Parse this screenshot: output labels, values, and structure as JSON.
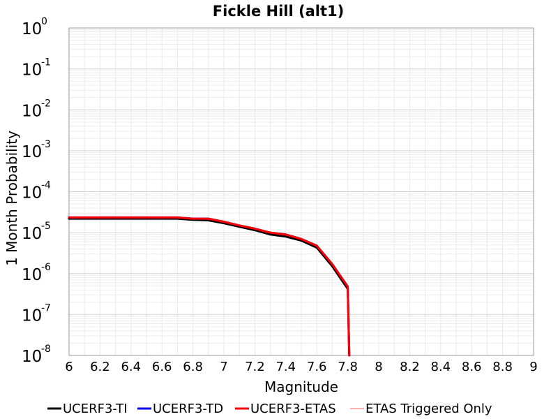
{
  "chart_data": {
    "type": "line",
    "title": "Fickle Hill (alt1)",
    "xlabel": "Magnitude",
    "ylabel": "1 Month Probability",
    "xlim": [
      6,
      9
    ],
    "ylim": [
      1e-08,
      1
    ],
    "yscale": "log",
    "grid": true,
    "legend_position": "bottom",
    "xticks": [
      "6",
      "6.2",
      "6.4",
      "6.6",
      "6.8",
      "7",
      "7.2",
      "7.4",
      "7.6",
      "7.8",
      "8",
      "8.2",
      "8.4",
      "8.6",
      "8.8",
      "9"
    ],
    "yticks": [
      {
        "base": "10",
        "exp": "0",
        "value": 1
      },
      {
        "base": "10",
        "exp": "-1",
        "value": 0.1
      },
      {
        "base": "10",
        "exp": "-2",
        "value": 0.01
      },
      {
        "base": "10",
        "exp": "-3",
        "value": 0.001
      },
      {
        "base": "10",
        "exp": "-4",
        "value": 0.0001
      },
      {
        "base": "10",
        "exp": "-5",
        "value": 1e-05
      },
      {
        "base": "10",
        "exp": "-6",
        "value": 1e-06
      },
      {
        "base": "10",
        "exp": "-7",
        "value": 1e-07
      },
      {
        "base": "10",
        "exp": "-8",
        "value": 1e-08
      }
    ],
    "series": [
      {
        "name": "UCERF3-TI",
        "color": "#000000",
        "width": 3,
        "x": [
          6.0,
          6.1,
          6.2,
          6.3,
          6.4,
          6.5,
          6.6,
          6.7,
          6.8,
          6.9,
          7.0,
          7.1,
          7.2,
          7.3,
          7.4,
          7.5,
          7.6,
          7.7,
          7.8,
          7.81
        ],
        "y": [
          2.2e-05,
          2.2e-05,
          2.2e-05,
          2.2e-05,
          2.2e-05,
          2.2e-05,
          2.2e-05,
          2.2e-05,
          2.05e-05,
          2e-05,
          1.7e-05,
          1.4e-05,
          1.15e-05,
          9e-06,
          8e-06,
          6.4e-06,
          4.3e-06,
          1.5e-06,
          4.2e-07,
          1e-08
        ]
      },
      {
        "name": "UCERF3-TD",
        "color": "#0000ff",
        "width": 3,
        "x": [
          6.0,
          6.1,
          6.2,
          6.3,
          6.4,
          6.5,
          6.6,
          6.7,
          6.8,
          6.9,
          7.0,
          7.1,
          7.2,
          7.3,
          7.4,
          7.5,
          7.6,
          7.7,
          7.8,
          7.81
        ],
        "y": [
          2.35e-05,
          2.35e-05,
          2.35e-05,
          2.35e-05,
          2.35e-05,
          2.35e-05,
          2.35e-05,
          2.35e-05,
          2.2e-05,
          2.2e-05,
          1.85e-05,
          1.5e-05,
          1.25e-05,
          1e-05,
          9e-06,
          7e-06,
          4.8e-06,
          1.7e-06,
          4.8e-07,
          1e-08
        ]
      },
      {
        "name": "UCERF3-ETAS",
        "color": "#ff0000",
        "width": 3,
        "x": [
          6.0,
          6.1,
          6.2,
          6.3,
          6.4,
          6.5,
          6.6,
          6.7,
          6.8,
          6.9,
          7.0,
          7.1,
          7.2,
          7.3,
          7.4,
          7.5,
          7.6,
          7.7,
          7.8,
          7.81
        ],
        "y": [
          2.35e-05,
          2.35e-05,
          2.35e-05,
          2.35e-05,
          2.35e-05,
          2.35e-05,
          2.35e-05,
          2.35e-05,
          2.2e-05,
          2.2e-05,
          1.85e-05,
          1.5e-05,
          1.25e-05,
          1e-05,
          9e-06,
          7e-06,
          4.8e-06,
          1.7e-06,
          4.8e-07,
          1e-08
        ]
      },
      {
        "name": "ETAS Triggered Only",
        "color": "#ff6666",
        "width": 1,
        "x": [],
        "y": []
      }
    ]
  }
}
